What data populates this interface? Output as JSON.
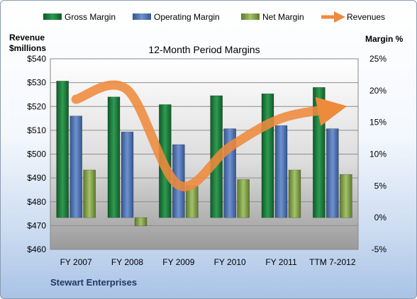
{
  "chart_data": {
    "type": "bar",
    "title": "12-Month Period Margins",
    "categories": [
      "FY 2007",
      "FY 2008",
      "FY 2009",
      "FY 2010",
      "FY 2011",
      "TTM 7-2012"
    ],
    "series": [
      {
        "name": "Gross Margin",
        "kind": "bar",
        "axis": "right",
        "color": "#1e7b3c",
        "values": [
          21.5,
          19.0,
          17.8,
          19.2,
          19.5,
          20.5
        ]
      },
      {
        "name": "Operating Margin",
        "kind": "bar",
        "axis": "right",
        "color": "#4a6fb0",
        "values": [
          16.0,
          13.5,
          11.5,
          14.0,
          14.5,
          14.0
        ]
      },
      {
        "name": "Net Margin",
        "kind": "bar",
        "axis": "right",
        "color": "#7f9d45",
        "values": [
          7.5,
          -1.3,
          5.0,
          6.0,
          7.5,
          6.8
        ]
      },
      {
        "name": "Revenues",
        "kind": "line",
        "axis": "left",
        "color": "#ee8a3c",
        "values": [
          523,
          527,
          487,
          503,
          515,
          519
        ]
      }
    ],
    "left_axis": {
      "title_line1": "Revenue",
      "title_line2": "$millions",
      "range": [
        460,
        540
      ],
      "ticks": [
        "$460",
        "$470",
        "$480",
        "$490",
        "$500",
        "$510",
        "$520",
        "$530",
        "$540"
      ]
    },
    "right_axis": {
      "title": "Margin %",
      "range": [
        -5,
        25
      ],
      "ticks": [
        "-5%",
        "0%",
        "5%",
        "10%",
        "15%",
        "20%",
        "25%"
      ]
    },
    "legend_position": "top",
    "grid": true
  },
  "footer": {
    "company": "Stewart Enterprises"
  }
}
